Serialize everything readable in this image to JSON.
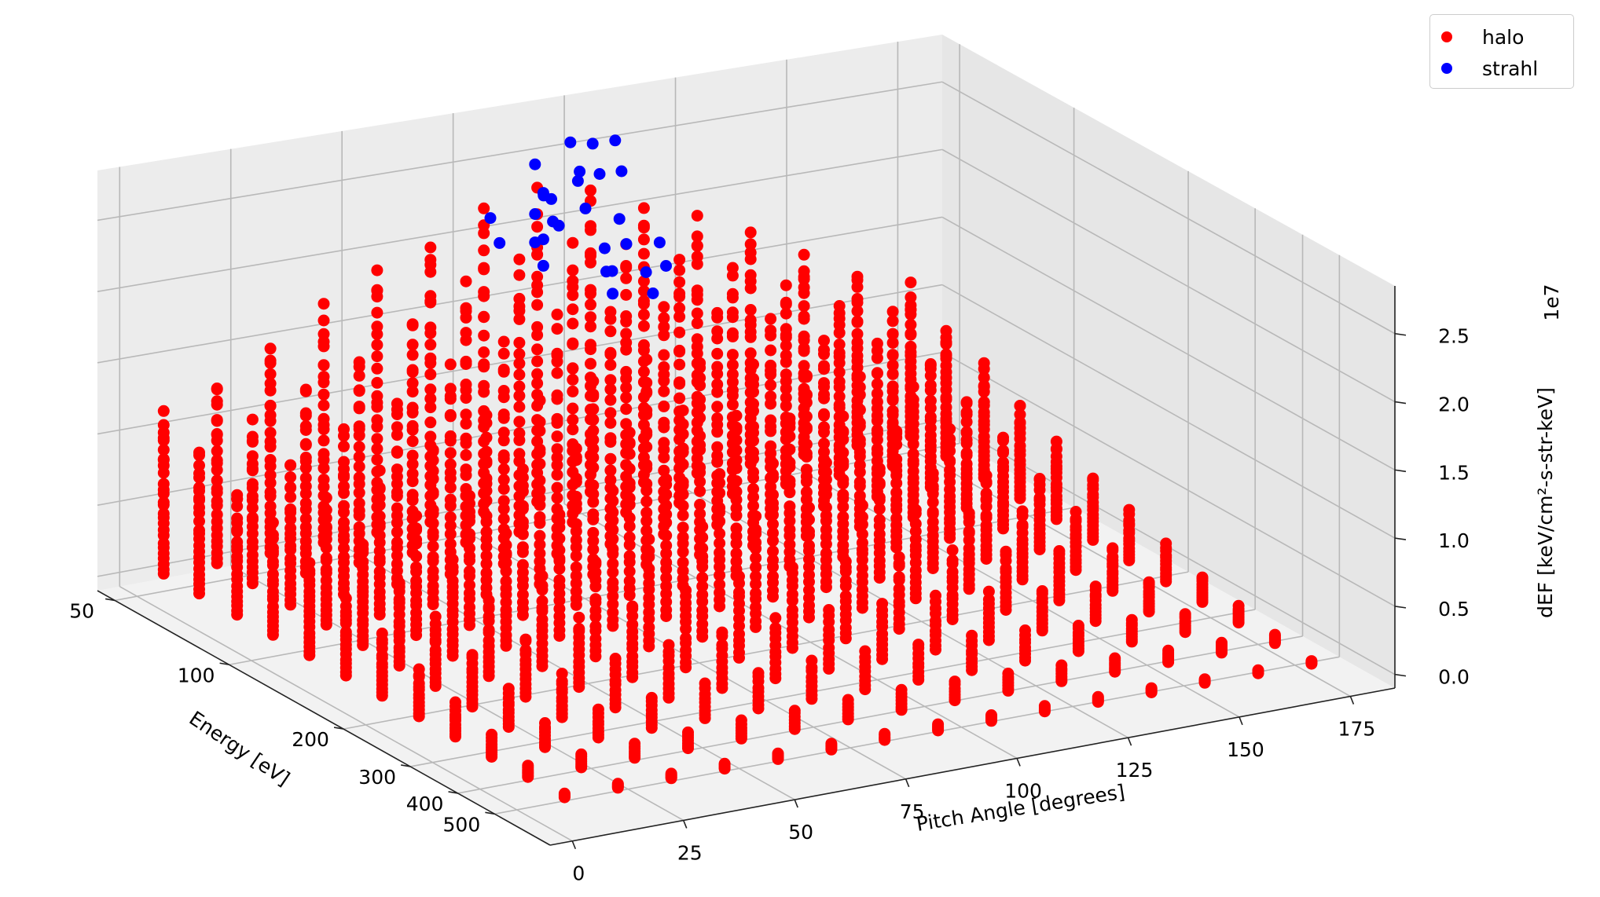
{
  "chart_data": {
    "type": "scatter",
    "title": "",
    "x_axis": {
      "label": "Pitch Angle [degrees]",
      "ticks": [
        "0",
        "25",
        "50",
        "75",
        "100",
        "125",
        "150",
        "175"
      ],
      "tick_values": [
        0,
        25,
        50,
        75,
        100,
        125,
        150,
        175
      ],
      "range": [
        -5,
        185
      ]
    },
    "y_axis": {
      "label": "Energy [eV]",
      "ticks": [
        "50",
        "100",
        "200",
        "300",
        "400",
        "500"
      ],
      "tick_values": [
        50,
        100,
        200,
        300,
        400,
        500
      ],
      "scale": "log",
      "range": [
        45,
        700
      ]
    },
    "z_axis": {
      "label": "dEF [keV/cm²-s-str-keV]",
      "ticks": [
        "0.0",
        "0.5",
        "1.0",
        "1.5",
        "2.0",
        "2.5"
      ],
      "tick_values": [
        0,
        0.5,
        1.0,
        1.5,
        2.0,
        2.5
      ],
      "offset_text": "1e7",
      "range": [
        -0.1,
        2.85
      ]
    },
    "grid": true,
    "legend_position": "top-right",
    "series": [
      {
        "name": "halo",
        "color": "#ff0000",
        "grid_pitch": [
          6,
          18,
          30,
          42,
          54,
          66,
          78,
          90,
          102,
          114,
          126,
          138,
          150,
          162,
          174
        ],
        "grid_energy": [
          50,
          62,
          78,
          97,
          121,
          151,
          188,
          235,
          293,
          365,
          455,
          568
        ],
        "peak_dEF_1e7": 2.05,
        "peak_pitch": 90,
        "peak_energy": 60
      },
      {
        "name": "strahl",
        "color": "#0000ff",
        "pitch_near": 84,
        "energy_range": [
          50,
          110
        ],
        "max_dEF_1e7": 2.8
      }
    ]
  },
  "legend": {
    "items": [
      {
        "label": "halo",
        "color": "#ff0000"
      },
      {
        "label": "strahl",
        "color": "#0000ff"
      }
    ]
  }
}
